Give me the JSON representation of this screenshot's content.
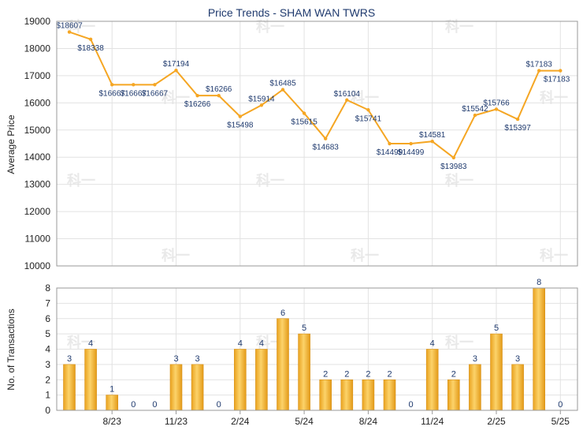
{
  "chart_data": [
    {
      "type": "line",
      "title": "Price Trends - SHAM WAN TWRS",
      "ylabel": "Average Price",
      "ylim": [
        10000,
        19000
      ],
      "yticks": [
        10000,
        11000,
        12000,
        13000,
        14000,
        15000,
        16000,
        17000,
        18000,
        19000
      ],
      "series": [
        {
          "values": [
            18607,
            18338,
            16667,
            16667,
            16667,
            17194,
            16266,
            16266,
            15498,
            15914,
            16485,
            15615,
            14683,
            16104,
            15741,
            14499,
            14499,
            14581,
            13983,
            15542,
            15766,
            15397,
            17183,
            17183
          ],
          "labels": [
            "$18607",
            "$18338",
            "$16667",
            "$16667",
            "$16667",
            "$17194",
            "$16266",
            "$16266",
            "$15498",
            "$15914",
            "$16485",
            "$15615",
            "$14683",
            "$16104",
            "$15741",
            "$14499",
            "$14499",
            "$14581",
            "$13983",
            "$15542",
            "$15766",
            "$15397",
            "$17183",
            "$17183"
          ],
          "color": "#f5a623"
        }
      ],
      "grid": true
    },
    {
      "type": "bar",
      "ylabel": "No. of Transactions",
      "ylim": [
        0,
        8
      ],
      "yticks": [
        0,
        1,
        2,
        3,
        4,
        5,
        6,
        7,
        8
      ],
      "values": [
        3,
        4,
        1,
        0,
        0,
        3,
        3,
        0,
        4,
        4,
        6,
        5,
        2,
        2,
        2,
        2,
        0,
        4,
        2,
        3,
        5,
        3,
        8,
        0
      ],
      "color": "#f0b232",
      "grid": true
    }
  ],
  "x_ticks": [
    {
      "index": 2,
      "label": "8/23"
    },
    {
      "index": 5,
      "label": "11/23"
    },
    {
      "index": 8,
      "label": "2/24"
    },
    {
      "index": 11,
      "label": "5/24"
    },
    {
      "index": 14,
      "label": "8/24"
    },
    {
      "index": 17,
      "label": "11/24"
    },
    {
      "index": 20,
      "label": "2/25"
    },
    {
      "index": 23,
      "label": "5/25"
    }
  ],
  "watermark": "科一"
}
